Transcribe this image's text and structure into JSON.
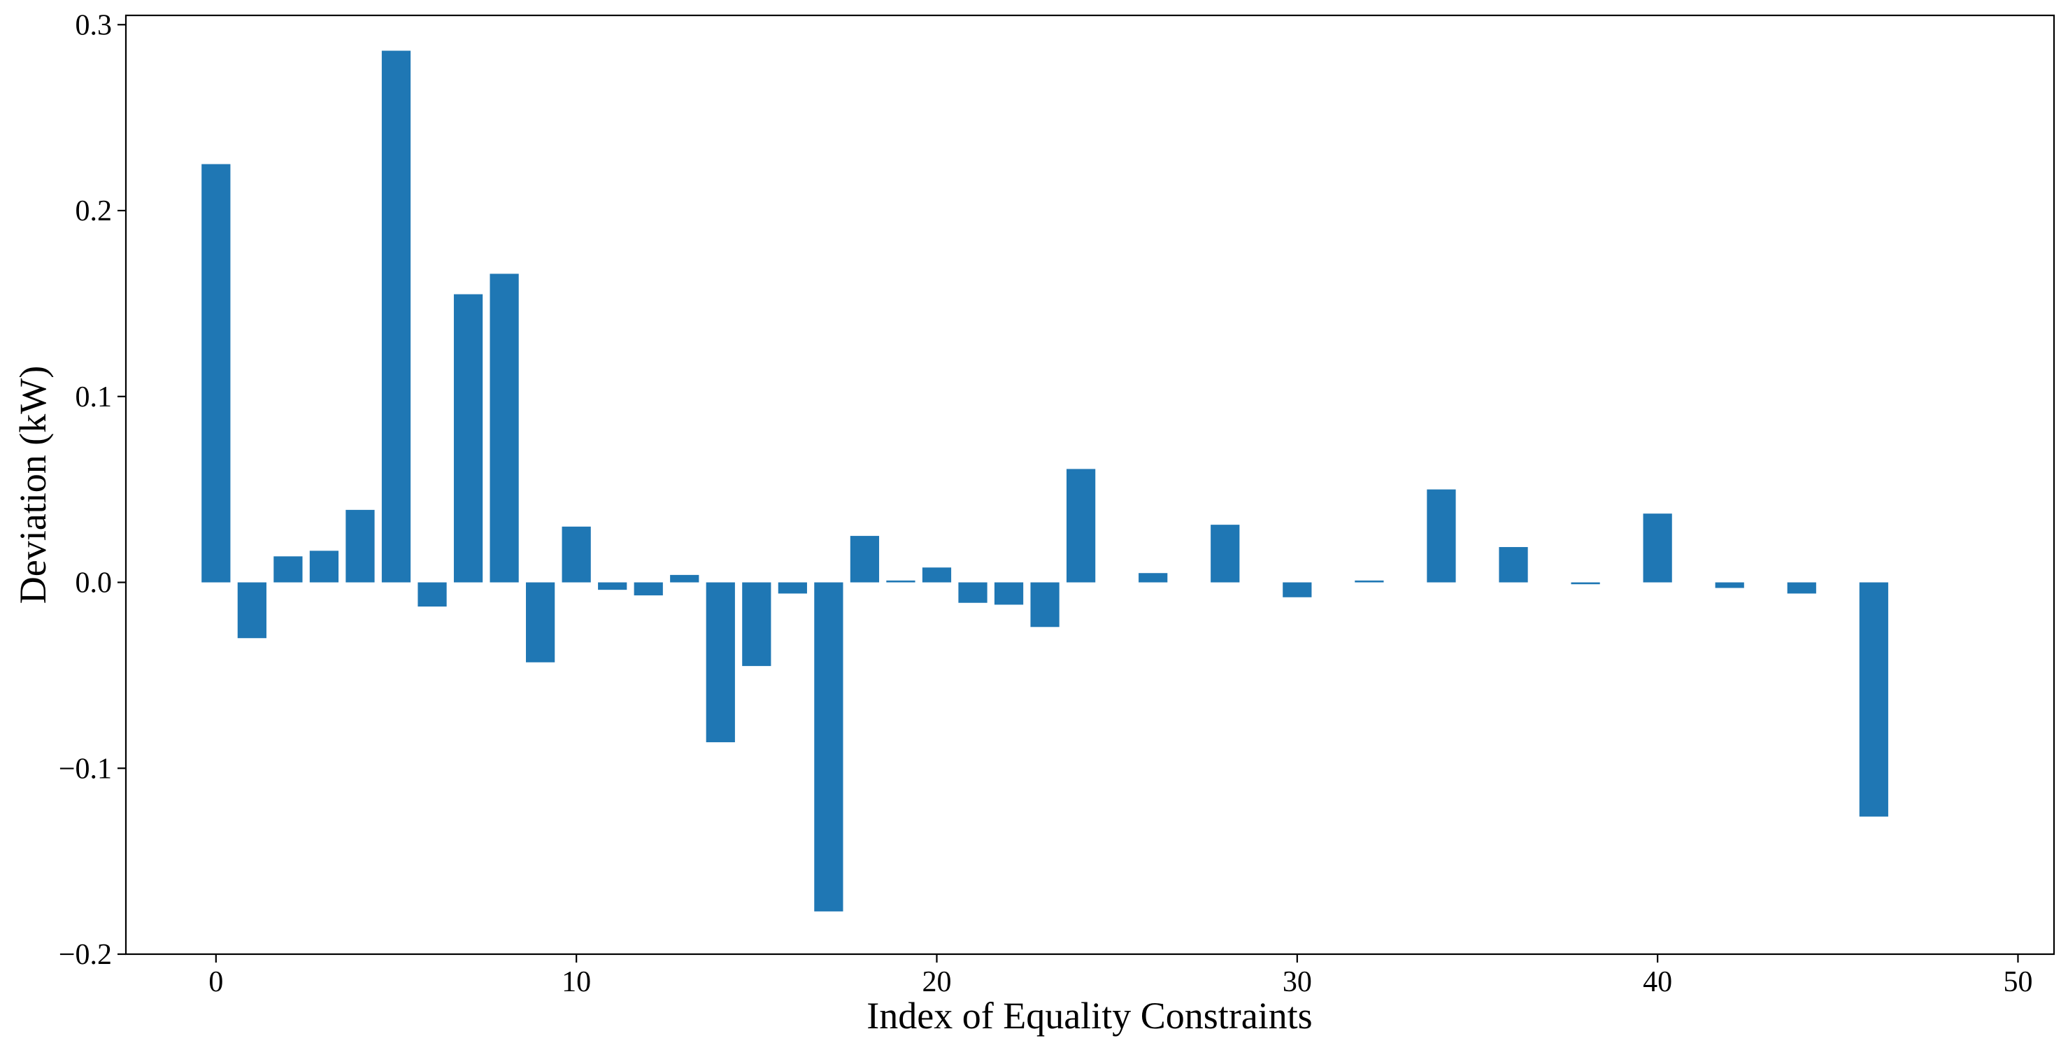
{
  "chart_data": {
    "type": "bar",
    "title": "",
    "xlabel": "Index of Equality Constraints",
    "ylabel": "Deviation (kW)",
    "xlim": [
      -2.5,
      51
    ],
    "ylim": [
      -0.2,
      0.305
    ],
    "xticks": [
      0,
      10,
      20,
      30,
      40,
      50
    ],
    "xtick_labels": [
      "0",
      "10",
      "20",
      "30",
      "40",
      "50"
    ],
    "yticks": [
      -0.2,
      -0.1,
      0.0,
      0.1,
      0.2,
      0.3
    ],
    "ytick_labels": [
      "−0.2",
      "−0.1",
      "0.0",
      "0.1",
      "0.2",
      "0.3"
    ],
    "bar_color": "#1f77b4",
    "bar_width": 0.8,
    "grid": false,
    "x": [
      0,
      1,
      2,
      3,
      4,
      5,
      6,
      7,
      8,
      9,
      10,
      11,
      12,
      13,
      14,
      15,
      16,
      17,
      18,
      19,
      20,
      21,
      22,
      23,
      24,
      26,
      28,
      30,
      32,
      34,
      36,
      38,
      40,
      42,
      44,
      46
    ],
    "values": [
      0.225,
      -0.03,
      0.014,
      0.017,
      0.039,
      0.286,
      -0.013,
      0.155,
      0.166,
      -0.043,
      0.03,
      -0.004,
      -0.007,
      0.004,
      -0.086,
      -0.045,
      -0.006,
      -0.177,
      0.025,
      0.001,
      0.008,
      -0.011,
      -0.012,
      -0.024,
      0.061,
      0.005,
      0.031,
      -0.008,
      0.001,
      0.05,
      0.019,
      -0.001,
      0.037,
      -0.003,
      -0.006,
      -0.126
    ]
  }
}
